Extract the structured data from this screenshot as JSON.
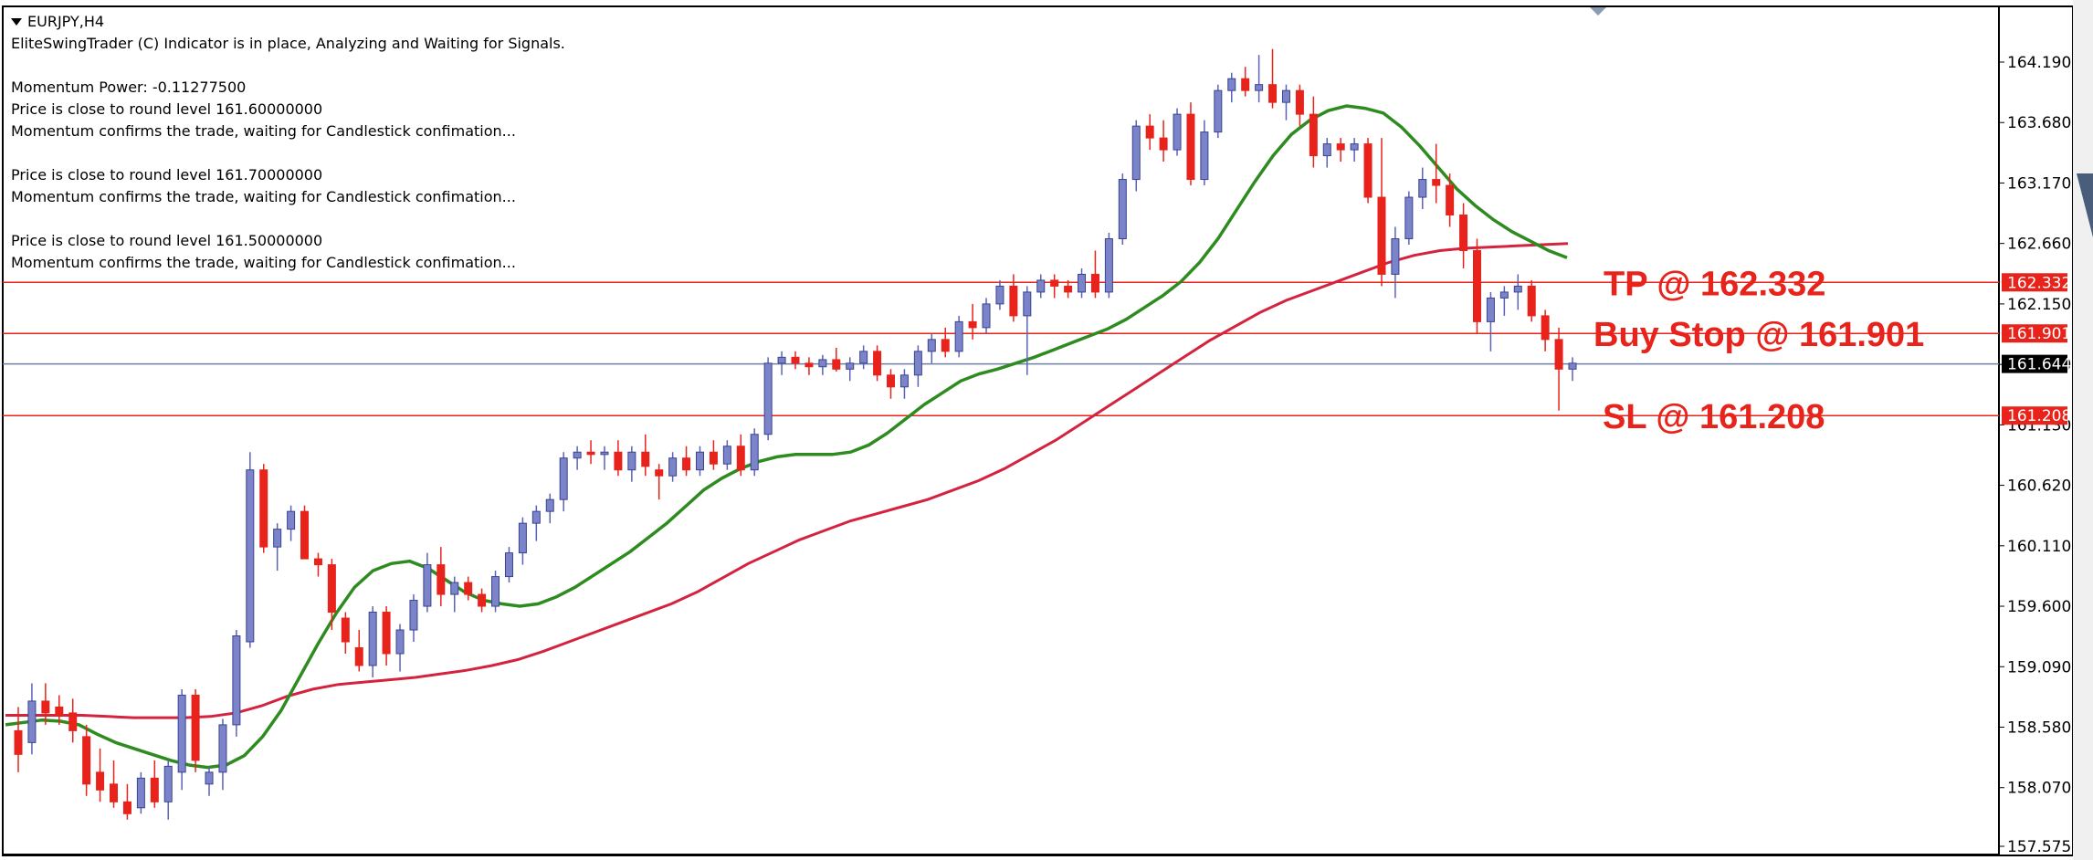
{
  "window": {
    "symbol_title": "EURJPY,H4"
  },
  "info_text": {
    "indicator_line": "EliteSwingTrader (C) Indicator is in place, Analyzing and Waiting for Signals.",
    "momentum_power": "Momentum Power: -0.11277500",
    "blocks": [
      [
        "Price is close to round level 161.60000000",
        "Momentum confirms the trade, waiting for Candlestick confimation..."
      ],
      [
        "Price is close to round level 161.70000000",
        "Momentum confirms the trade, waiting for Candlestick confimation..."
      ],
      [
        "Price is close to round level 161.50000000",
        "Momentum confirms the trade, waiting for Candlestick confimation..."
      ]
    ]
  },
  "chart_data": {
    "type": "candlestick",
    "ylim": [
      157.575,
      164.45
    ],
    "price_ticks": [
      "164.190",
      "163.680",
      "163.170",
      "162.660",
      "162.150",
      "161.640",
      "161.130",
      "160.620",
      "160.110",
      "159.600",
      "159.090",
      "158.580",
      "158.070",
      "157.575"
    ],
    "current_price": "161.644",
    "levels": [
      {
        "name": "tp",
        "price": 162.332,
        "label": "162.332",
        "annotation": "TP @ 162.332",
        "color": "#e8231b"
      },
      {
        "name": "buy-stop",
        "price": 161.901,
        "label": "161.901",
        "annotation": "Buy Stop @ 161.901",
        "color": "#e8231b"
      },
      {
        "name": "sl",
        "price": 161.208,
        "label": "161.208",
        "annotation": "SL @ 161.208",
        "color": "#e8231b"
      }
    ],
    "candles": [
      [
        158.55,
        158.75,
        158.2,
        158.35
      ],
      [
        158.45,
        158.95,
        158.35,
        158.8
      ],
      [
        158.8,
        158.95,
        158.6,
        158.7
      ],
      [
        158.75,
        158.85,
        158.6,
        158.68
      ],
      [
        158.7,
        158.82,
        158.45,
        158.55
      ],
      [
        158.5,
        158.6,
        158.0,
        158.1
      ],
      [
        158.2,
        158.4,
        157.95,
        158.05
      ],
      [
        158.1,
        158.3,
        157.9,
        157.95
      ],
      [
        157.95,
        158.1,
        157.8,
        157.85
      ],
      [
        157.9,
        158.2,
        157.85,
        158.15
      ],
      [
        158.15,
        158.3,
        157.9,
        157.95
      ],
      [
        157.95,
        158.3,
        157.8,
        158.25
      ],
      [
        158.2,
        158.9,
        158.05,
        158.85
      ],
      [
        158.85,
        158.9,
        158.2,
        158.3
      ],
      [
        158.1,
        158.25,
        158.0,
        158.2
      ],
      [
        158.2,
        158.65,
        158.05,
        158.6
      ],
      [
        158.6,
        159.4,
        158.5,
        159.35
      ],
      [
        159.3,
        160.9,
        159.25,
        160.75
      ],
      [
        160.75,
        160.8,
        160.05,
        160.1
      ],
      [
        160.1,
        160.3,
        159.9,
        160.25
      ],
      [
        160.25,
        160.45,
        160.15,
        160.4
      ],
      [
        160.4,
        160.45,
        160.0,
        160.0
      ],
      [
        160.0,
        160.05,
        159.85,
        159.95
      ],
      [
        159.95,
        160.0,
        159.4,
        159.55
      ],
      [
        159.5,
        159.55,
        159.2,
        159.3
      ],
      [
        159.25,
        159.4,
        159.05,
        159.1
      ],
      [
        159.1,
        159.6,
        159.0,
        159.55
      ],
      [
        159.55,
        159.6,
        159.1,
        159.2
      ],
      [
        159.2,
        159.45,
        159.05,
        159.4
      ],
      [
        159.4,
        159.7,
        159.3,
        159.65
      ],
      [
        159.6,
        160.05,
        159.55,
        159.95
      ],
      [
        159.95,
        160.1,
        159.6,
        159.7
      ],
      [
        159.7,
        159.85,
        159.55,
        159.8
      ],
      [
        159.8,
        159.85,
        159.65,
        159.7
      ],
      [
        159.7,
        159.75,
        159.55,
        159.6
      ],
      [
        159.6,
        159.9,
        159.55,
        159.85
      ],
      [
        159.85,
        160.1,
        159.8,
        160.05
      ],
      [
        160.05,
        160.35,
        159.95,
        160.3
      ],
      [
        160.3,
        160.45,
        160.15,
        160.4
      ],
      [
        160.4,
        160.55,
        160.3,
        160.5
      ],
      [
        160.5,
        160.9,
        160.4,
        160.85
      ],
      [
        160.85,
        160.95,
        160.75,
        160.9
      ],
      [
        160.9,
        161.0,
        160.8,
        160.88
      ],
      [
        160.88,
        160.95,
        160.75,
        160.9
      ],
      [
        160.9,
        161.0,
        160.7,
        160.75
      ],
      [
        160.75,
        160.95,
        160.65,
        160.9
      ],
      [
        160.9,
        161.05,
        160.7,
        160.78
      ],
      [
        160.75,
        160.8,
        160.5,
        160.7
      ],
      [
        160.7,
        160.9,
        160.65,
        160.85
      ],
      [
        160.85,
        160.95,
        160.7,
        160.75
      ],
      [
        160.75,
        160.95,
        160.7,
        160.9
      ],
      [
        160.9,
        161.0,
        160.75,
        160.8
      ],
      [
        160.8,
        161.0,
        160.75,
        160.95
      ],
      [
        160.95,
        161.05,
        160.7,
        160.75
      ],
      [
        160.75,
        161.1,
        160.7,
        161.05
      ],
      [
        161.05,
        161.7,
        161.0,
        161.65
      ],
      [
        161.65,
        161.75,
        161.55,
        161.7
      ],
      [
        161.7,
        161.75,
        161.6,
        161.65
      ],
      [
        161.65,
        161.7,
        161.55,
        161.62
      ],
      [
        161.62,
        161.72,
        161.55,
        161.68
      ],
      [
        161.68,
        161.78,
        161.58,
        161.6
      ],
      [
        161.6,
        161.7,
        161.5,
        161.65
      ],
      [
        161.65,
        161.8,
        161.6,
        161.75
      ],
      [
        161.75,
        161.8,
        161.5,
        161.55
      ],
      [
        161.55,
        161.6,
        161.35,
        161.45
      ],
      [
        161.45,
        161.6,
        161.35,
        161.55
      ],
      [
        161.55,
        161.8,
        161.45,
        161.75
      ],
      [
        161.75,
        161.9,
        161.65,
        161.85
      ],
      [
        161.85,
        161.95,
        161.7,
        161.75
      ],
      [
        161.75,
        162.05,
        161.7,
        162.0
      ],
      [
        162.0,
        162.15,
        161.85,
        161.95
      ],
      [
        161.95,
        162.2,
        161.9,
        162.15
      ],
      [
        162.15,
        162.35,
        162.1,
        162.3
      ],
      [
        162.3,
        162.4,
        162.0,
        162.05
      ],
      [
        162.05,
        162.3,
        161.55,
        162.25
      ],
      [
        162.25,
        162.4,
        162.2,
        162.35
      ],
      [
        162.35,
        162.4,
        162.2,
        162.3
      ],
      [
        162.3,
        162.35,
        162.2,
        162.25
      ],
      [
        162.25,
        162.45,
        162.2,
        162.4
      ],
      [
        162.4,
        162.6,
        162.2,
        162.25
      ],
      [
        162.25,
        162.75,
        162.2,
        162.7
      ],
      [
        162.7,
        163.25,
        162.65,
        163.2
      ],
      [
        163.2,
        163.7,
        163.1,
        163.65
      ],
      [
        163.65,
        163.75,
        163.45,
        163.55
      ],
      [
        163.55,
        163.7,
        163.35,
        163.45
      ],
      [
        163.45,
        163.8,
        163.4,
        163.75
      ],
      [
        163.75,
        163.85,
        163.15,
        163.2
      ],
      [
        163.2,
        163.7,
        163.15,
        163.6
      ],
      [
        163.6,
        164.0,
        163.55,
        163.95
      ],
      [
        163.95,
        164.1,
        163.85,
        164.05
      ],
      [
        164.05,
        164.15,
        163.9,
        163.95
      ],
      [
        163.95,
        164.25,
        163.85,
        164.0
      ],
      [
        164.0,
        164.3,
        163.8,
        163.85
      ],
      [
        163.85,
        164.0,
        163.7,
        163.95
      ],
      [
        163.95,
        164.0,
        163.65,
        163.75
      ],
      [
        163.75,
        163.9,
        163.3,
        163.4
      ],
      [
        163.4,
        163.55,
        163.3,
        163.5
      ],
      [
        163.5,
        163.55,
        163.35,
        163.45
      ],
      [
        163.45,
        163.55,
        163.35,
        163.5
      ],
      [
        163.5,
        163.55,
        163.0,
        163.05
      ],
      [
        163.05,
        163.55,
        162.3,
        162.4
      ],
      [
        162.4,
        162.8,
        162.2,
        162.7
      ],
      [
        162.7,
        163.1,
        162.65,
        163.05
      ],
      [
        163.05,
        163.3,
        162.95,
        163.2
      ],
      [
        163.2,
        163.5,
        163.0,
        163.15
      ],
      [
        163.15,
        163.25,
        162.8,
        162.9
      ],
      [
        162.9,
        163.0,
        162.45,
        162.6
      ],
      [
        162.6,
        162.7,
        161.9,
        162.0
      ],
      [
        162.0,
        162.25,
        161.75,
        162.2
      ],
      [
        162.2,
        162.3,
        162.05,
        162.25
      ],
      [
        162.25,
        162.4,
        162.1,
        162.3
      ],
      [
        162.3,
        162.35,
        162.0,
        162.05
      ],
      [
        162.05,
        162.1,
        161.75,
        161.85
      ],
      [
        161.85,
        161.95,
        161.25,
        161.6
      ],
      [
        161.6,
        161.7,
        161.5,
        161.65
      ]
    ],
    "ma_fast_green": [
      158.6,
      158.62,
      158.64,
      158.63,
      158.6,
      158.52,
      158.45,
      158.4,
      158.35,
      158.3,
      158.26,
      158.24,
      158.26,
      158.34,
      158.5,
      158.72,
      159.0,
      159.28,
      159.54,
      159.76,
      159.9,
      159.96,
      159.98,
      159.92,
      159.82,
      159.72,
      159.65,
      159.62,
      159.6,
      159.62,
      159.68,
      159.76,
      159.86,
      159.96,
      160.06,
      160.18,
      160.3,
      160.44,
      160.58,
      160.68,
      160.76,
      160.82,
      160.86,
      160.88,
      160.88,
      160.88,
      160.9,
      160.96,
      161.06,
      161.18,
      161.3,
      161.4,
      161.5,
      161.56,
      161.6,
      161.65,
      161.7,
      161.76,
      161.82,
      161.88,
      161.94,
      162.02,
      162.12,
      162.22,
      162.34,
      162.5,
      162.7,
      162.94,
      163.18,
      163.4,
      163.58,
      163.7,
      163.78,
      163.82,
      163.8,
      163.76,
      163.64,
      163.48,
      163.3,
      163.12,
      162.98,
      162.86,
      162.76,
      162.68,
      162.6,
      162.54
    ],
    "ma_slow_red": [
      158.68,
      158.68,
      158.68,
      158.68,
      158.67,
      158.66,
      158.66,
      158.66,
      158.67,
      158.7,
      158.76,
      158.84,
      158.9,
      158.94,
      158.96,
      158.98,
      159.0,
      159.03,
      159.06,
      159.1,
      159.15,
      159.22,
      159.3,
      159.38,
      159.46,
      159.54,
      159.62,
      159.72,
      159.84,
      159.96,
      160.06,
      160.16,
      160.24,
      160.32,
      160.38,
      160.44,
      160.5,
      160.58,
      160.66,
      160.76,
      160.88,
      161.0,
      161.14,
      161.28,
      161.42,
      161.56,
      161.7,
      161.84,
      161.96,
      162.08,
      162.18,
      162.26,
      162.34,
      162.42,
      162.5,
      162.56,
      162.6,
      162.62,
      162.63,
      162.64,
      162.65,
      162.66
    ]
  }
}
